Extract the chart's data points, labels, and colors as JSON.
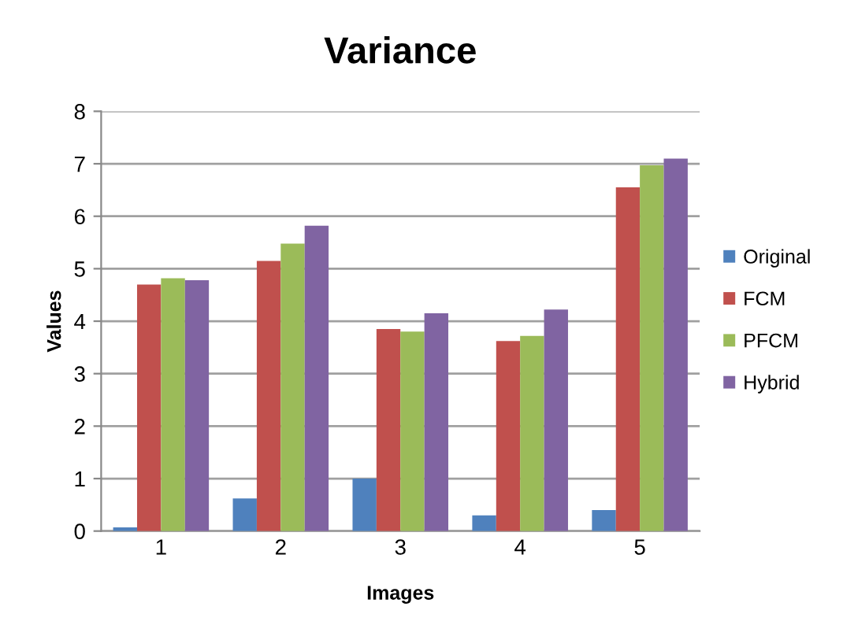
{
  "chart_data": {
    "type": "bar",
    "title": "Variance",
    "xlabel": "Images",
    "ylabel": "Values",
    "categories": [
      "1",
      "2",
      "3",
      "4",
      "5"
    ],
    "series": [
      {
        "name": "Original",
        "color": "#4f81bd",
        "values": [
          0.07,
          0.62,
          1.0,
          0.3,
          0.4
        ]
      },
      {
        "name": "FCM",
        "color": "#c0504d",
        "values": [
          4.7,
          5.15,
          3.85,
          3.62,
          6.55
        ]
      },
      {
        "name": "PFCM",
        "color": "#9bbb59",
        "values": [
          4.82,
          5.48,
          3.8,
          3.72,
          6.97
        ]
      },
      {
        "name": "Hybrid",
        "color": "#8064a2",
        "values": [
          4.78,
          5.82,
          4.15,
          4.22,
          7.1
        ]
      }
    ],
    "ylim": [
      0,
      8
    ],
    "yticks": [
      0,
      1,
      2,
      3,
      4,
      5,
      6,
      7,
      8
    ],
    "grid": "y",
    "legend": "right"
  }
}
